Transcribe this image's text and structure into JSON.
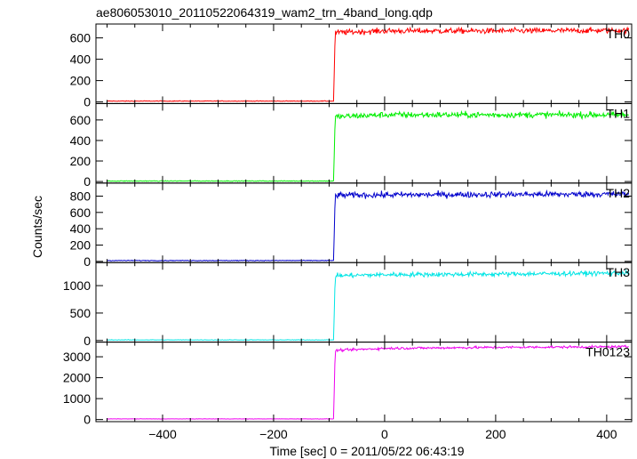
{
  "chart_data": {
    "type": "line",
    "title": "ae806053010_20110522064319_wam2_trn_4band_long.qdp",
    "xlabel": "Time [sec] 0 = 2011/05/22 06:43:19",
    "ylabel": "Counts/sec",
    "xlim": [
      -520,
      445
    ],
    "x_ticks": [
      -400,
      -200,
      0,
      200,
      400
    ],
    "grid": false,
    "onset_time": -92,
    "panels": [
      {
        "name": "TH0",
        "color": "#ff0000",
        "ylim": [
          -15,
          730
        ],
        "y_ticks": [
          0,
          200,
          400,
          600
        ],
        "background": 8,
        "level": [
          [
            -92,
            650
          ],
          [
            0,
            665
          ],
          [
            200,
            665
          ],
          [
            440,
            670
          ]
        ],
        "noise": 25
      },
      {
        "name": "TH1",
        "color": "#00ee00",
        "ylim": [
          -15,
          760
        ],
        "y_ticks": [
          0,
          200,
          400,
          600
        ],
        "background": 5,
        "level": [
          [
            -92,
            630
          ],
          [
            0,
            650
          ],
          [
            200,
            650
          ],
          [
            440,
            650
          ]
        ],
        "noise": 28
      },
      {
        "name": "TH2",
        "color": "#0000cc",
        "ylim": [
          -15,
          960
        ],
        "y_ticks": [
          0,
          200,
          400,
          600,
          800
        ],
        "background": 10,
        "level": [
          [
            -92,
            810
          ],
          [
            0,
            815
          ],
          [
            200,
            820
          ],
          [
            440,
            825
          ]
        ],
        "noise": 35
      },
      {
        "name": "TH3",
        "color": "#00e5e5",
        "ylim": [
          -30,
          1420
        ],
        "y_ticks": [
          0,
          500,
          1000
        ],
        "background": 10,
        "level": [
          [
            -92,
            1180
          ],
          [
            0,
            1200
          ],
          [
            200,
            1210
          ],
          [
            440,
            1230
          ]
        ],
        "noise": 40
      },
      {
        "name": "TH0123",
        "color": "#ee00ee",
        "ylim": [
          -100,
          3700
        ],
        "y_ticks": [
          0,
          1000,
          2000,
          3000
        ],
        "background": 30,
        "level": [
          [
            -92,
            3300
          ],
          [
            0,
            3400
          ],
          [
            200,
            3450
          ],
          [
            440,
            3480
          ]
        ],
        "noise": 55
      }
    ]
  }
}
